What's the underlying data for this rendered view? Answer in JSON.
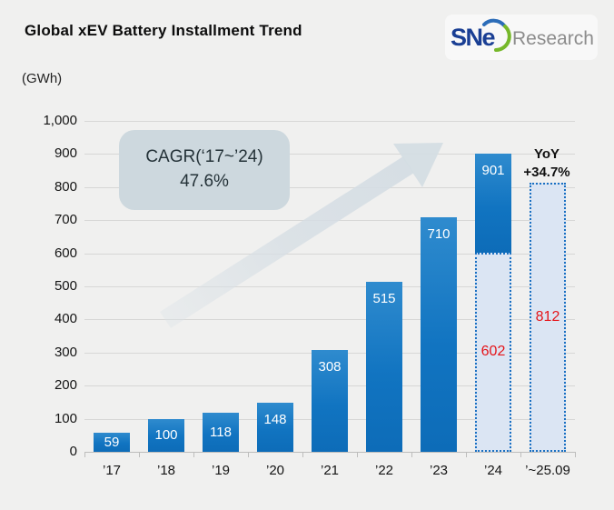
{
  "header": {
    "title": "Global xEV Battery Installment Trend",
    "logo": {
      "sne": "SNe",
      "research": "Research"
    }
  },
  "chart": {
    "unit_label": "(GWh)",
    "cagr_box": {
      "line1": "CAGR(‘17~’24)",
      "line2": "47.6%"
    },
    "yoy_note": {
      "line1": "YoY",
      "line2": "+34.7%"
    }
  },
  "chart_data": {
    "type": "bar",
    "title": "Global xEV Battery Installment Trend",
    "ylabel": "(GWh)",
    "xlabel": "",
    "ylim": [
      0,
      1000
    ],
    "ytick_step": 100,
    "grid": true,
    "legend": "none",
    "categories": [
      "’17",
      "’18",
      "’19",
      "’20",
      "’21",
      "’22",
      "’23",
      "’24",
      "’~25.09"
    ],
    "values": [
      59,
      100,
      118,
      148,
      308,
      515,
      710,
      901,
      812
    ],
    "bars": [
      {
        "category": "’17",
        "segments": [
          {
            "style": "solid",
            "from": 0,
            "to": 59,
            "label": "59"
          }
        ]
      },
      {
        "category": "’18",
        "segments": [
          {
            "style": "solid",
            "from": 0,
            "to": 100,
            "label": "100"
          }
        ]
      },
      {
        "category": "’19",
        "segments": [
          {
            "style": "solid",
            "from": 0,
            "to": 118,
            "label": "118"
          }
        ]
      },
      {
        "category": "’20",
        "segments": [
          {
            "style": "solid",
            "from": 0,
            "to": 148,
            "label": "148"
          }
        ]
      },
      {
        "category": "’21",
        "segments": [
          {
            "style": "solid",
            "from": 0,
            "to": 308,
            "label": "308"
          }
        ]
      },
      {
        "category": "’22",
        "segments": [
          {
            "style": "solid",
            "from": 0,
            "to": 515,
            "label": "515"
          }
        ]
      },
      {
        "category": "’23",
        "segments": [
          {
            "style": "solid",
            "from": 0,
            "to": 710,
            "label": "710"
          }
        ]
      },
      {
        "category": "’24",
        "segments": [
          {
            "style": "dotted",
            "from": 0,
            "to": 602,
            "label": "602"
          },
          {
            "style": "solid",
            "from": 602,
            "to": 901,
            "label": "901"
          }
        ]
      },
      {
        "category": "’~25.09",
        "segments": [
          {
            "style": "dotted",
            "from": 0,
            "to": 812,
            "label": "812"
          }
        ]
      }
    ],
    "annotations": [
      {
        "name": "cagr",
        "text": "CAGR(‘17~’24) 47.6%"
      },
      {
        "name": "yoy",
        "text": "YoY +34.7%"
      }
    ],
    "colors": {
      "bar_blue": "#1174c1",
      "dotted_fill": "#dbe5f3",
      "dotted_border": "#1a70c2",
      "estimate_label_red": "#e51419",
      "background": "#f0f0ef",
      "gridline": "#d7d7d6",
      "cagr_box_bg": "#cdd8de",
      "arrow": "#d6dee4",
      "logo_blue": "#1a3f94",
      "logo_green": "#76b82a",
      "logo_gray": "#8c8c8c"
    }
  }
}
